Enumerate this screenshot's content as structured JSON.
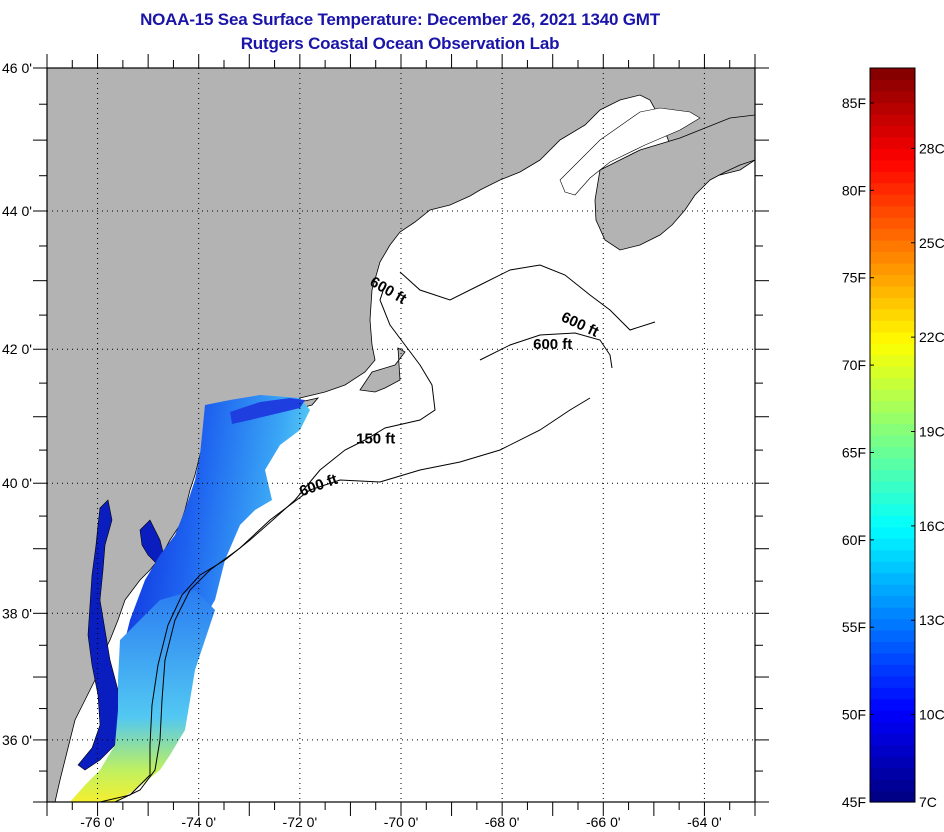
{
  "header": {
    "title": "NOAA-15 Sea Surface Temperature:  December 26, 2021 1340 GMT",
    "subtitle": "Rutgers Coastal Ocean Observation Lab"
  },
  "map": {
    "lon_range": [
      -77,
      -63
    ],
    "lat_range": [
      35,
      46
    ],
    "lon_ticks": [
      {
        "value": -76,
        "label": "-76 0'"
      },
      {
        "value": -74,
        "label": "-74 0'"
      },
      {
        "value": -72,
        "label": "-72 0'"
      },
      {
        "value": -70,
        "label": "-70 0'"
      },
      {
        "value": -68,
        "label": "-68 0'"
      },
      {
        "value": -66,
        "label": "-66 0'"
      },
      {
        "value": -64,
        "label": "-64 0'"
      }
    ],
    "lat_ticks": [
      {
        "value": 46,
        "label": "46 0'"
      },
      {
        "value": 44,
        "label": "44 0'"
      },
      {
        "value": 42,
        "label": "42 0'"
      },
      {
        "value": 40,
        "label": "40 0'"
      },
      {
        "value": 38,
        "label": "38 0'"
      },
      {
        "value": 36,
        "label": "36 0'"
      }
    ],
    "contour_labels": [
      {
        "text": "600 ft",
        "lon": -70.3,
        "lat": 42.8
      },
      {
        "text": "600 ft",
        "lon": -66.5,
        "lat": 42.3
      },
      {
        "text": "600 ft",
        "lon": -67.0,
        "lat": 42.0
      },
      {
        "text": "150 ft",
        "lon": -70.5,
        "lat": 40.6
      },
      {
        "text": "600 ft",
        "lon": -71.6,
        "lat": 39.9
      }
    ],
    "land_color": "#b3b3b3",
    "ocean_color": "#ffffff",
    "grid": "dotted"
  },
  "colorbar": {
    "f_range": [
      45,
      87
    ],
    "f_ticks": [
      {
        "value": 45,
        "label": "45F"
      },
      {
        "value": 50,
        "label": "50F"
      },
      {
        "value": 55,
        "label": "55F"
      },
      {
        "value": 60,
        "label": "60F"
      },
      {
        "value": 65,
        "label": "65F"
      },
      {
        "value": 70,
        "label": "70F"
      },
      {
        "value": 75,
        "label": "75F"
      },
      {
        "value": 80,
        "label": "80F"
      },
      {
        "value": 85,
        "label": "85F"
      }
    ],
    "c_ticks": [
      {
        "value": 7,
        "label": "7C"
      },
      {
        "value": 10,
        "label": "10C"
      },
      {
        "value": 13,
        "label": "13C"
      },
      {
        "value": 16,
        "label": "16C"
      },
      {
        "value": 19,
        "label": "19C"
      },
      {
        "value": 22,
        "label": "22C"
      },
      {
        "value": 25,
        "label": "25C"
      },
      {
        "value": 28,
        "label": "28C"
      }
    ],
    "colormap": "jet"
  }
}
